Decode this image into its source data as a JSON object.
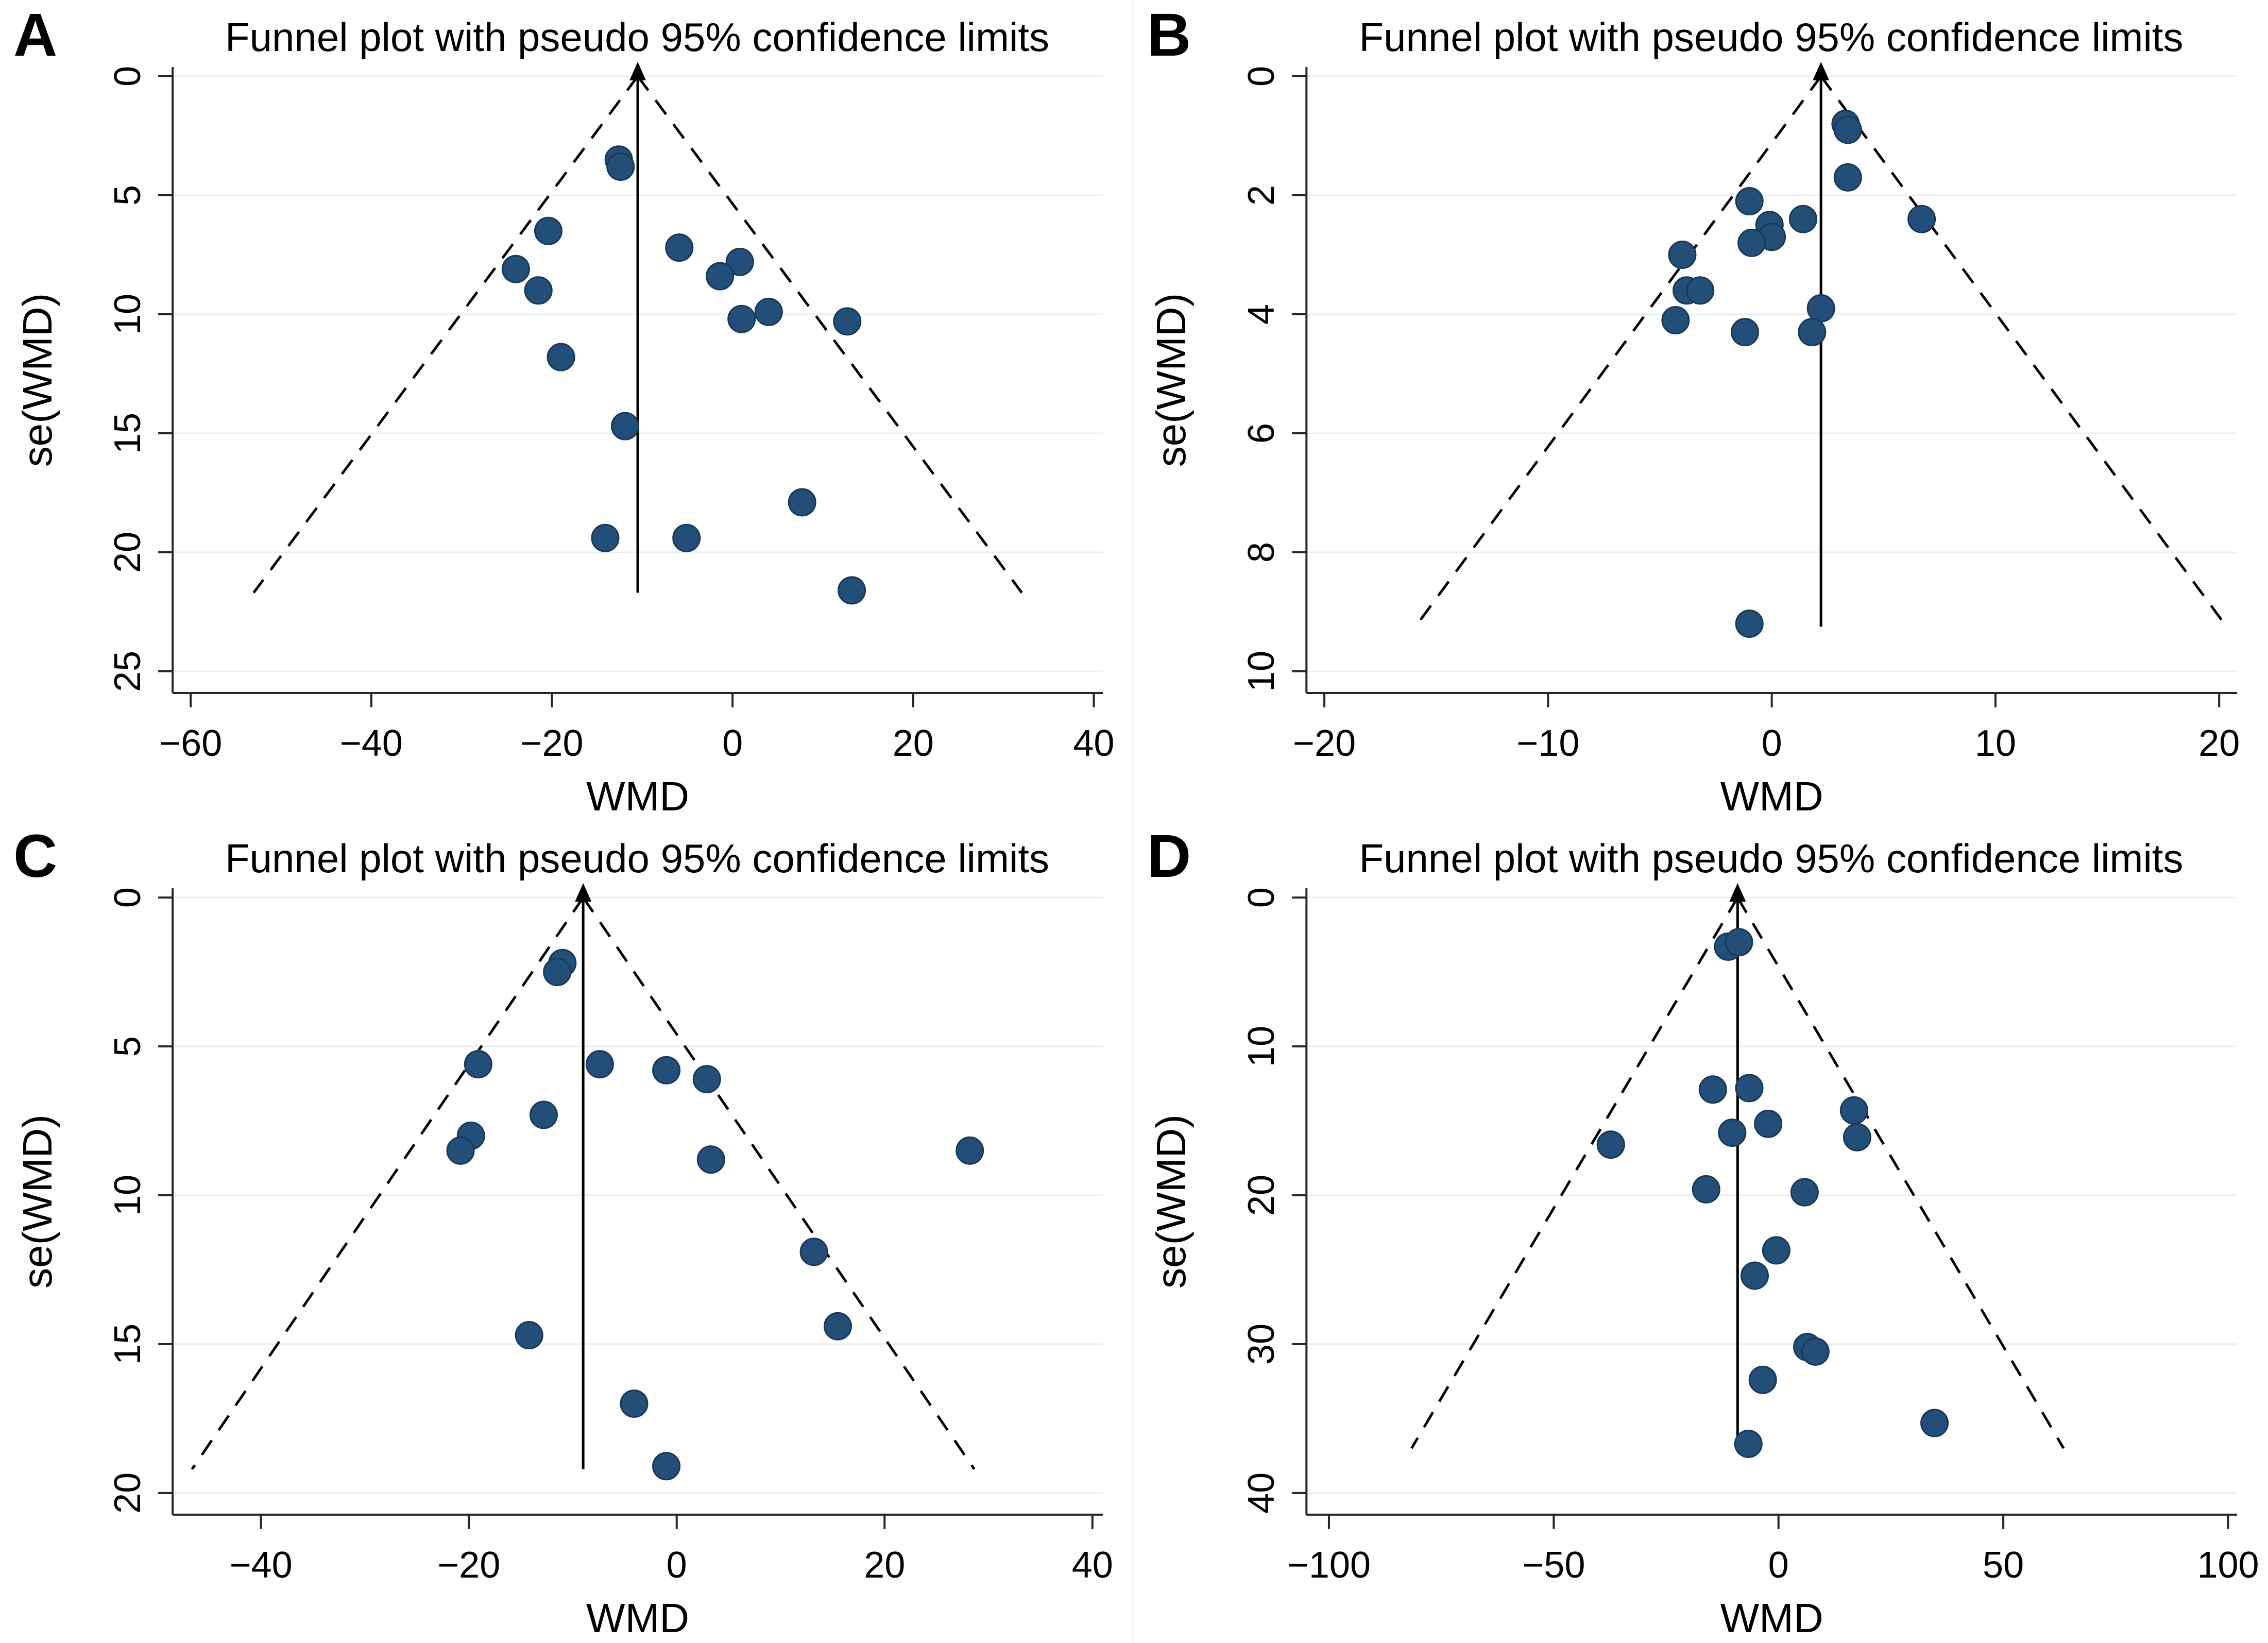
{
  "style": {
    "background": "#ffffff",
    "dot_fill": "#234e78",
    "dot_stroke": "#17395a",
    "grid_color": "#e4f1f1",
    "axis_color": "#262626",
    "line_color": "#000000",
    "text_color": "#000000"
  },
  "chart_data": [
    {
      "panel_label": "A",
      "type": "scatter",
      "title": "Funnel plot with pseudo 95% confidence limits",
      "xlabel": "WMD",
      "ylabel": "se(WMD)",
      "x_ticks": [
        -60,
        -40,
        -20,
        0,
        20,
        40
      ],
      "y_ticks": [
        0,
        5,
        10,
        15,
        20,
        25
      ],
      "xlim": [
        -62,
        41
      ],
      "ylim": [
        0,
        26
      ],
      "y_axis_reversed": true,
      "grid": "horizontal",
      "legend": "none",
      "center_wmd": -10.5,
      "funnel_max_se": 21.7,
      "points": [
        [
          -12.6,
          3.5
        ],
        [
          -12.4,
          3.8
        ],
        [
          -20.4,
          6.5
        ],
        [
          -24.0,
          8.1
        ],
        [
          -21.5,
          9.0
        ],
        [
          -5.9,
          7.2
        ],
        [
          0.8,
          7.8
        ],
        [
          -1.4,
          8.4
        ],
        [
          1.0,
          10.2
        ],
        [
          4.0,
          9.9
        ],
        [
          12.7,
          10.3
        ],
        [
          -19.0,
          11.8
        ],
        [
          -11.9,
          14.7
        ],
        [
          7.7,
          17.9
        ],
        [
          -14.1,
          19.4
        ],
        [
          -5.1,
          19.4
        ],
        [
          13.2,
          21.6
        ]
      ]
    },
    {
      "panel_label": "B",
      "type": "scatter",
      "title": "Funnel plot with pseudo 95% confidence limits",
      "xlabel": "WMD",
      "ylabel": "se(WMD)",
      "x_ticks": [
        -20,
        -10,
        0,
        10,
        20
      ],
      "y_ticks": [
        0,
        2,
        4,
        6,
        8,
        10
      ],
      "xlim": [
        -20.8,
        20.8
      ],
      "ylim": [
        0,
        10.4
      ],
      "y_axis_reversed": true,
      "grid": "horizontal",
      "legend": "none",
      "center_wmd": 2.2,
      "funnel_max_se": 9.25,
      "points": [
        [
          3.3,
          0.8
        ],
        [
          3.4,
          0.9
        ],
        [
          3.4,
          1.7
        ],
        [
          -1.0,
          2.1
        ],
        [
          1.4,
          2.4
        ],
        [
          -0.1,
          2.5
        ],
        [
          0.0,
          2.7
        ],
        [
          -0.9,
          2.8
        ],
        [
          6.7,
          2.4
        ],
        [
          -4.0,
          3.0
        ],
        [
          -3.8,
          3.6
        ],
        [
          -3.2,
          3.6
        ],
        [
          -4.3,
          4.1
        ],
        [
          2.2,
          3.9
        ],
        [
          -1.2,
          4.3
        ],
        [
          1.8,
          4.3
        ],
        [
          -1.0,
          9.2
        ]
      ]
    },
    {
      "panel_label": "C",
      "type": "scatter",
      "title": "Funnel plot with pseudo 95% confidence limits",
      "xlabel": "WMD",
      "ylabel": "se(WMD)",
      "x_ticks": [
        -40,
        -20,
        0,
        20,
        40
      ],
      "y_ticks": [
        0,
        5,
        10,
        15,
        20
      ],
      "xlim": [
        -48.5,
        41
      ],
      "ylim": [
        0,
        20.7
      ],
      "y_axis_reversed": true,
      "grid": "horizontal",
      "legend": "none",
      "center_wmd": -9.0,
      "funnel_max_se": 19.2,
      "points": [
        [
          -11.0,
          2.2
        ],
        [
          -11.5,
          2.5
        ],
        [
          -19.1,
          5.6
        ],
        [
          -7.4,
          5.6
        ],
        [
          -1.0,
          5.8
        ],
        [
          2.9,
          6.1
        ],
        [
          -12.8,
          7.3
        ],
        [
          -19.8,
          8.0
        ],
        [
          -20.8,
          8.5
        ],
        [
          3.3,
          8.8
        ],
        [
          28.2,
          8.5
        ],
        [
          13.2,
          11.9
        ],
        [
          15.5,
          14.4
        ],
        [
          -14.2,
          14.7
        ],
        [
          -4.1,
          17.0
        ],
        [
          -1.0,
          19.1
        ]
      ]
    },
    {
      "panel_label": "D",
      "type": "scatter",
      "title": "Funnel plot with pseudo 95% confidence limits",
      "xlabel": "WMD",
      "ylabel": "se(WMD)",
      "x_ticks": [
        -100,
        -50,
        0,
        50,
        100
      ],
      "y_ticks": [
        0,
        10,
        20,
        30,
        40
      ],
      "xlim": [
        -105,
        102
      ],
      "ylim": [
        0,
        41.5
      ],
      "y_axis_reversed": true,
      "grid": "horizontal",
      "legend": "none",
      "center_wmd": -9.1,
      "funnel_max_se": 37.0,
      "points": [
        [
          -11.2,
          3.3
        ],
        [
          -8.8,
          3.0
        ],
        [
          -14.6,
          12.9
        ],
        [
          -6.5,
          12.8
        ],
        [
          16.8,
          14.3
        ],
        [
          -2.3,
          15.2
        ],
        [
          -10.3,
          15.8
        ],
        [
          17.5,
          16.1
        ],
        [
          -37.3,
          16.6
        ],
        [
          -16.1,
          19.6
        ],
        [
          5.8,
          19.8
        ],
        [
          -0.5,
          23.7
        ],
        [
          -5.3,
          25.4
        ],
        [
          6.4,
          30.2
        ],
        [
          8.2,
          30.5
        ],
        [
          -3.5,
          32.4
        ],
        [
          34.7,
          35.3
        ],
        [
          -6.7,
          36.7
        ]
      ]
    }
  ]
}
